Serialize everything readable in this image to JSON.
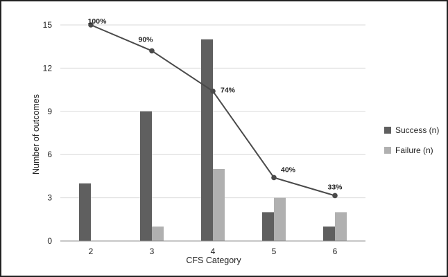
{
  "chart_data": {
    "type": "bar",
    "xlabel": "CFS Category",
    "ylabel": "Number of outcomes",
    "categories": [
      "2",
      "3",
      "4",
      "5",
      "6"
    ],
    "ylim": [
      0,
      15
    ],
    "yticks": [
      0,
      3,
      6,
      9,
      12,
      15
    ],
    "grid": true,
    "legend_position": "right",
    "series": [
      {
        "name": "Success (n)",
        "values": [
          4,
          9,
          14,
          2,
          1
        ],
        "color": "#5f5f5f"
      },
      {
        "name": "Failure (n)",
        "values": [
          0,
          1,
          5,
          3,
          2
        ],
        "color": "#b0b0b0"
      }
    ],
    "line": {
      "values": [
        15,
        13.2,
        10.4,
        4.4,
        3.15
      ],
      "labels": [
        "100%",
        "90%",
        "74%",
        "40%",
        "33%"
      ],
      "color": "#4a4a4a"
    }
  }
}
